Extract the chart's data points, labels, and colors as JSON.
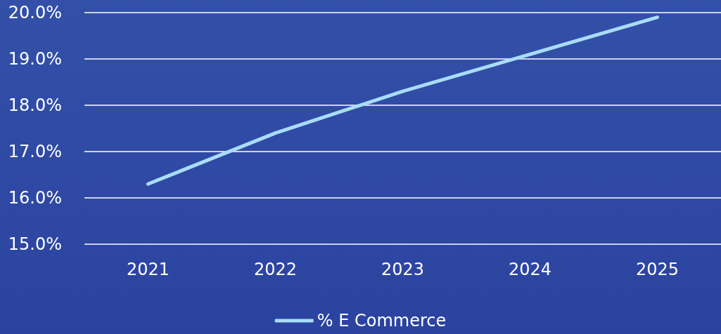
{
  "chart_data": {
    "type": "line",
    "categories": [
      "2021",
      "2022",
      "2023",
      "2024",
      "2025"
    ],
    "series": [
      {
        "name": "% E Commerce",
        "color": "#a9dcf7",
        "values": [
          16.3,
          17.4,
          18.3,
          19.1,
          19.9
        ]
      }
    ],
    "ylim": [
      15,
      20
    ],
    "yticks": [
      {
        "value": 15,
        "label": "15.0%"
      },
      {
        "value": 16,
        "label": "16.0%"
      },
      {
        "value": 17,
        "label": "17.0%"
      },
      {
        "value": 18,
        "label": "18.0%"
      },
      {
        "value": 19,
        "label": "19.0%"
      },
      {
        "value": 20,
        "label": "20.0%"
      }
    ],
    "grid": "y",
    "legend": "bottom",
    "marker": "none",
    "line_style": "solid"
  }
}
